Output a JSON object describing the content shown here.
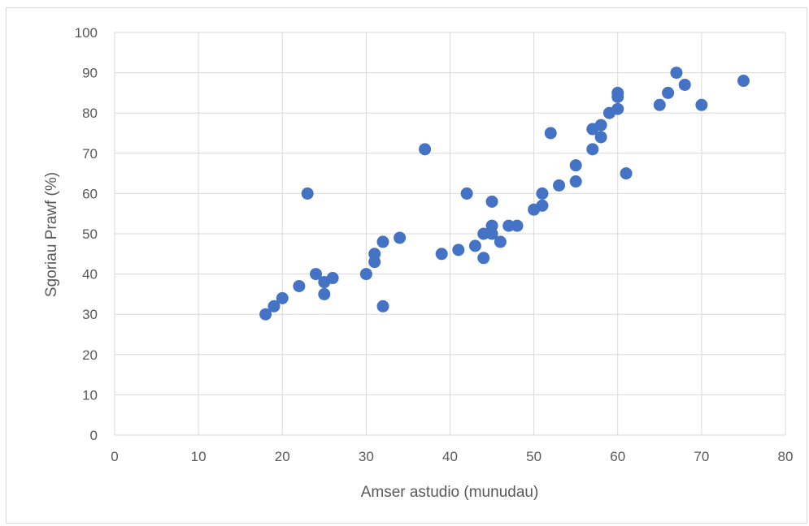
{
  "chart_data": {
    "type": "scatter",
    "title": "",
    "xlabel": "Amser astudio (munudau)",
    "ylabel": "Sgoriau Prawf (%)",
    "xlim": [
      0,
      80
    ],
    "ylim": [
      0,
      100
    ],
    "xticks": [
      0,
      10,
      20,
      30,
      40,
      50,
      60,
      70,
      80
    ],
    "yticks": [
      0,
      10,
      20,
      30,
      40,
      50,
      60,
      70,
      80,
      90,
      100
    ],
    "grid": true,
    "legend": "none",
    "marker_color": "#4472C4",
    "points": [
      {
        "x": 18,
        "y": 30
      },
      {
        "x": 19,
        "y": 32
      },
      {
        "x": 20,
        "y": 34
      },
      {
        "x": 22,
        "y": 37
      },
      {
        "x": 23,
        "y": 60
      },
      {
        "x": 24,
        "y": 40
      },
      {
        "x": 25,
        "y": 38
      },
      {
        "x": 25,
        "y": 35
      },
      {
        "x": 26,
        "y": 39
      },
      {
        "x": 30,
        "y": 40
      },
      {
        "x": 31,
        "y": 45
      },
      {
        "x": 31,
        "y": 43
      },
      {
        "x": 32,
        "y": 48
      },
      {
        "x": 32,
        "y": 32
      },
      {
        "x": 34,
        "y": 49
      },
      {
        "x": 37,
        "y": 71
      },
      {
        "x": 39,
        "y": 45
      },
      {
        "x": 41,
        "y": 46
      },
      {
        "x": 42,
        "y": 60
      },
      {
        "x": 43,
        "y": 47
      },
      {
        "x": 44,
        "y": 50
      },
      {
        "x": 44,
        "y": 44
      },
      {
        "x": 45,
        "y": 58
      },
      {
        "x": 45,
        "y": 52
      },
      {
        "x": 45,
        "y": 50
      },
      {
        "x": 46,
        "y": 48
      },
      {
        "x": 47,
        "y": 52
      },
      {
        "x": 48,
        "y": 52
      },
      {
        "x": 50,
        "y": 56
      },
      {
        "x": 51,
        "y": 60
      },
      {
        "x": 51,
        "y": 57
      },
      {
        "x": 52,
        "y": 75
      },
      {
        "x": 53,
        "y": 62
      },
      {
        "x": 55,
        "y": 67
      },
      {
        "x": 55,
        "y": 63
      },
      {
        "x": 57,
        "y": 76
      },
      {
        "x": 57,
        "y": 71
      },
      {
        "x": 58,
        "y": 77
      },
      {
        "x": 58,
        "y": 74
      },
      {
        "x": 59,
        "y": 80
      },
      {
        "x": 60,
        "y": 85
      },
      {
        "x": 60,
        "y": 84
      },
      {
        "x": 60,
        "y": 81
      },
      {
        "x": 61,
        "y": 65
      },
      {
        "x": 65,
        "y": 82
      },
      {
        "x": 66,
        "y": 85
      },
      {
        "x": 67,
        "y": 90
      },
      {
        "x": 68,
        "y": 87
      },
      {
        "x": 70,
        "y": 82
      },
      {
        "x": 75,
        "y": 88
      }
    ]
  }
}
